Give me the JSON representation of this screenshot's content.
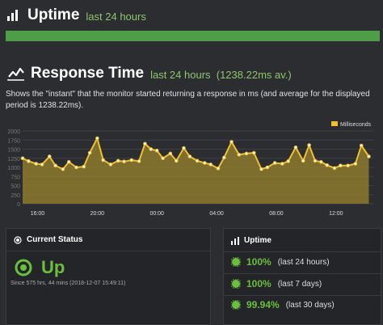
{
  "uptime_header": {
    "title": "Uptime",
    "subtitle": "last 24 hours",
    "bar_percent": 100
  },
  "response": {
    "title": "Response Time",
    "subtitle": "last 24 hours  (1238.22ms av.)",
    "description": "Shows the \"instant\" that the monitor started returning a response in ms (and average for the displayed period is 1238.22ms)."
  },
  "chart_data": {
    "type": "area",
    "legend": "Milliseconds",
    "legend_position": "top-right",
    "color": "#f0c030",
    "y_ticks": [
      "0",
      "250",
      "500",
      "750",
      "1000",
      "1250",
      "1500",
      "1750",
      "2000"
    ],
    "ylim": [
      0,
      2000
    ],
    "x_ticks": [
      "16:00",
      "20:00",
      "00:00",
      "04:00",
      "08:00",
      "12:00"
    ],
    "x_tick_positions": [
      1,
      5,
      9,
      13,
      17,
      21
    ],
    "xlim": [
      0,
      23.5
    ],
    "x": [
      0,
      0.4,
      0.9,
      1.3,
      1.8,
      2.2,
      2.7,
      3.1,
      3.6,
      4.1,
      4.5,
      5.0,
      5.4,
      5.9,
      6.4,
      6.8,
      7.3,
      7.8,
      8.2,
      8.6,
      9.0,
      9.4,
      9.9,
      10.3,
      10.8,
      11.2,
      11.7,
      12.2,
      12.6,
      13.1,
      13.5,
      14.0,
      14.5,
      15.0,
      15.5,
      16.0,
      16.4,
      16.9,
      17.4,
      17.8,
      18.3,
      18.8,
      19.2,
      19.6,
      20.0,
      20.4,
      20.9,
      21.3,
      21.8,
      22.3,
      22.7,
      23.2
    ],
    "values": [
      1250,
      1170,
      1100,
      1080,
      1300,
      1050,
      950,
      1150,
      1000,
      1020,
      1400,
      1800,
      1200,
      1080,
      1180,
      1160,
      1200,
      1170,
      1650,
      1500,
      1460,
      1250,
      1380,
      1180,
      1530,
      1300,
      1180,
      1120,
      1080,
      970,
      1270,
      1700,
      1350,
      1380,
      1400,
      950,
      1000,
      1120,
      1100,
      1170,
      1550,
      1180,
      1610,
      1180,
      1150,
      1060,
      980,
      1050,
      1050,
      1100,
      1600,
      1300
    ],
    "grid": true
  },
  "current_status": {
    "header": "Current Status",
    "state": "Up",
    "since": "Since 575 hrs, 44 mins (2018-12-07 15:49:11)"
  },
  "uptime_panel": {
    "header": "Uptime",
    "rows": [
      {
        "percent": "100%",
        "label": "(last 24 hours)"
      },
      {
        "percent": "100%",
        "label": "(last 7 days)"
      },
      {
        "percent": "99.94%",
        "label": "(last 30 days)"
      }
    ]
  },
  "colors": {
    "accent_green": "#6bbf3f",
    "bar_green": "#4e9e48",
    "chart_fill": "#f0c030"
  }
}
